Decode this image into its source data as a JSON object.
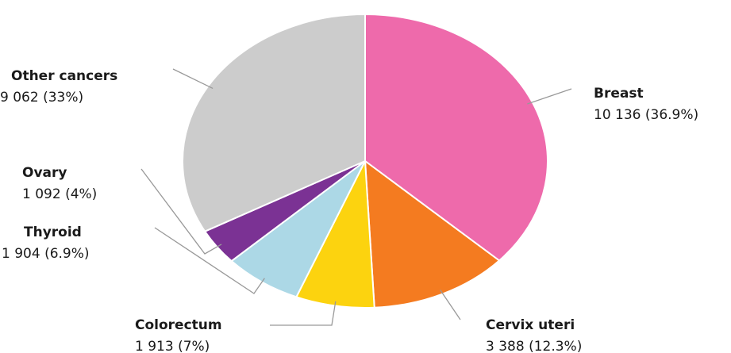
{
  "chart_data": {
    "type": "pie",
    "categories": [
      "Breast",
      "Cervix uteri",
      "Colorectum",
      "Thyroid",
      "Ovary",
      "Other cancers"
    ],
    "values": [
      10136,
      3388,
      1913,
      1904,
      1092,
      9062
    ],
    "value_labels": [
      "10 136 (36.9%)",
      "3 388 (12.3%)",
      "1 913 (7%)",
      "1 904 (6.9%)",
      "1 092 (4%)",
      "9 062 (33%)"
    ],
    "colors": [
      "#ee6aab",
      "#f47b20",
      "#fcd30f",
      "#acd8e6",
      "#7b3294",
      "#cccccc"
    ]
  }
}
